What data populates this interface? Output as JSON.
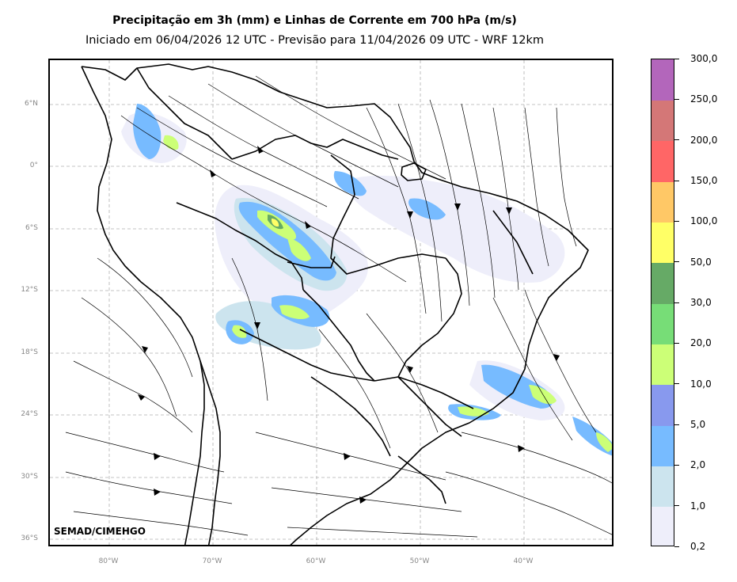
{
  "header": {
    "title": "Precipitação em 3h (mm) e Linhas de Corrente em 700 hPa (m/s)",
    "subtitle": "Iniciado em 06/04/2026 12 UTC - Previsão para 11/04/2026 09 UTC - WRF 12km"
  },
  "map": {
    "lat_labels": [
      "6°N",
      "0°",
      "6°S",
      "12°S",
      "18°S",
      "24°S",
      "30°S",
      "36°S"
    ],
    "lon_labels": [
      "80°W",
      "70°W",
      "60°W",
      "50°W",
      "40°W"
    ],
    "lat_values": [
      6,
      0,
      -6,
      -12,
      -18,
      -24,
      -30,
      -36
    ],
    "lon_values": [
      -80,
      -70,
      -60,
      -50,
      -40
    ],
    "gridlines": true,
    "watermark": "SEMAD/CIMEHGO"
  },
  "colorbar": {
    "labels": [
      "0,2",
      "1,0",
      "2,0",
      "5,0",
      "10,0",
      "20,0",
      "30,0",
      "50,0",
      "100,0",
      "150,0",
      "200,0",
      "250,0",
      "300,0"
    ],
    "colors": [
      "#eeeefa",
      "#cce4ee",
      "#77bbff",
      "#8899ee",
      "#ccff77",
      "#77dd77",
      "#66aa66",
      "#ffff66",
      "#ffc866",
      "#ff6666",
      "#d47777",
      "#b366bb"
    ]
  }
}
